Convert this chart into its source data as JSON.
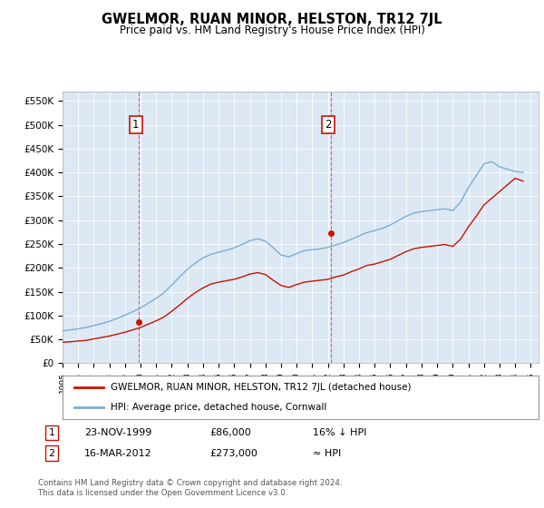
{
  "title": "GWELMOR, RUAN MINOR, HELSTON, TR12 7JL",
  "subtitle": "Price paid vs. HM Land Registry's House Price Index (HPI)",
  "ylabel_ticks": [
    "£0",
    "£50K",
    "£100K",
    "£150K",
    "£200K",
    "£250K",
    "£300K",
    "£350K",
    "£400K",
    "£450K",
    "£500K",
    "£550K"
  ],
  "ylabel_values": [
    0,
    50000,
    100000,
    150000,
    200000,
    250000,
    300000,
    350000,
    400000,
    450000,
    500000,
    550000
  ],
  "ylim": [
    0,
    570000
  ],
  "hpi_color": "#7aadd4",
  "price_color": "#cc1100",
  "dashed_color": "#cc1100",
  "background_color": "#dce8f4",
  "plot_bg": "#ffffff",
  "sale1_x": 1999.9,
  "sale1_price": 86000,
  "sale2_x": 2012.2,
  "sale2_price": 273000,
  "legend_label1": "GWELMOR, RUAN MINOR, HELSTON, TR12 7JL (detached house)",
  "legend_label2": "HPI: Average price, detached house, Cornwall",
  "footer": "Contains HM Land Registry data © Crown copyright and database right 2024.\nThis data is licensed under the Open Government Licence v3.0.",
  "xmin": 1995,
  "xmax": 2025.5,
  "hpi_x": [
    1995.0,
    1995.5,
    1996.0,
    1996.5,
    1997.0,
    1997.5,
    1998.0,
    1998.5,
    1999.0,
    1999.5,
    2000.0,
    2000.5,
    2001.0,
    2001.5,
    2002.0,
    2002.5,
    2003.0,
    2003.5,
    2004.0,
    2004.5,
    2005.0,
    2005.5,
    2006.0,
    2006.5,
    2007.0,
    2007.5,
    2008.0,
    2008.5,
    2009.0,
    2009.5,
    2010.0,
    2010.5,
    2011.0,
    2011.5,
    2012.0,
    2012.5,
    2013.0,
    2013.5,
    2014.0,
    2014.5,
    2015.0,
    2015.5,
    2016.0,
    2016.5,
    2017.0,
    2017.5,
    2018.0,
    2018.5,
    2019.0,
    2019.5,
    2020.0,
    2020.5,
    2021.0,
    2021.5,
    2022.0,
    2022.5,
    2023.0,
    2023.5,
    2024.0,
    2024.5
  ],
  "hpi_y": [
    68000,
    70000,
    72000,
    75000,
    79000,
    83000,
    88000,
    94000,
    101000,
    108000,
    116000,
    126000,
    136000,
    148000,
    164000,
    181000,
    197000,
    210000,
    221000,
    228000,
    233000,
    237000,
    242000,
    249000,
    257000,
    261000,
    256000,
    242000,
    227000,
    223000,
    230000,
    236000,
    238000,
    240000,
    243000,
    248000,
    253000,
    260000,
    267000,
    274000,
    278000,
    283000,
    290000,
    299000,
    308000,
    315000,
    318000,
    320000,
    322000,
    324000,
    320000,
    338000,
    368000,
    393000,
    418000,
    423000,
    412000,
    407000,
    402000,
    400000
  ],
  "price_x": [
    1995.0,
    1995.5,
    1996.0,
    1996.5,
    1997.0,
    1997.5,
    1998.0,
    1998.5,
    1999.0,
    1999.5,
    2000.0,
    2000.5,
    2001.0,
    2001.5,
    2002.0,
    2002.5,
    2003.0,
    2003.5,
    2004.0,
    2004.5,
    2005.0,
    2005.5,
    2006.0,
    2006.5,
    2007.0,
    2007.5,
    2008.0,
    2008.5,
    2009.0,
    2009.5,
    2010.0,
    2010.5,
    2011.0,
    2011.5,
    2012.0,
    2012.5,
    2013.0,
    2013.5,
    2014.0,
    2014.5,
    2015.0,
    2015.5,
    2016.0,
    2016.5,
    2017.0,
    2017.5,
    2018.0,
    2018.5,
    2019.0,
    2019.5,
    2020.0,
    2020.5,
    2021.0,
    2021.5,
    2022.0,
    2022.5,
    2023.0,
    2023.5,
    2024.0,
    2024.5
  ],
  "price_y": [
    44000,
    45000,
    46500,
    48000,
    51000,
    54000,
    57000,
    61000,
    65000,
    70000,
    75000,
    82000,
    89000,
    97000,
    109000,
    122000,
    136000,
    148000,
    158000,
    166000,
    170000,
    173000,
    176000,
    181000,
    187000,
    190000,
    186000,
    174000,
    163000,
    159000,
    165000,
    170000,
    172000,
    174000,
    176000,
    181000,
    185000,
    192000,
    198000,
    205000,
    208000,
    213000,
    218000,
    226000,
    234000,
    240000,
    243000,
    245000,
    247000,
    249000,
    245000,
    260000,
    286000,
    308000,
    332000,
    346000,
    360000,
    374000,
    388000,
    382000
  ]
}
